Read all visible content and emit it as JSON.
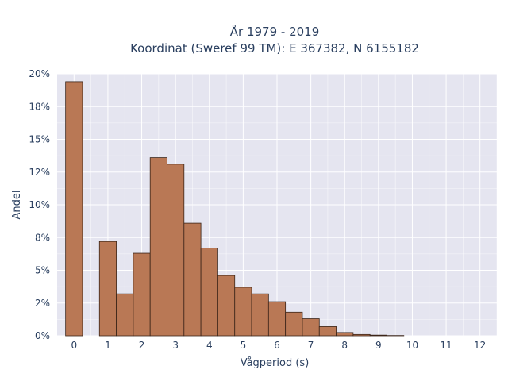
{
  "chart_data": {
    "type": "bar",
    "title_lines": [
      "År 1979 - 2019",
      "Koordinat (Sweref 99 TM): E 367382, N 6155182"
    ],
    "xlabel": "Vågperiod (s)",
    "ylabel": "Andel",
    "x_ticks": [
      0,
      1,
      2,
      3,
      4,
      5,
      6,
      7,
      8,
      9,
      10,
      11,
      12
    ],
    "y_ticks": [
      "0%",
      "2%",
      "5%",
      "8%",
      "10%",
      "12%",
      "15%",
      "18%",
      "20%"
    ],
    "y_tick_values": [
      0,
      0.025,
      0.05,
      0.075,
      0.1,
      0.125,
      0.15,
      0.175,
      0.2
    ],
    "xlim": [
      -0.5,
      12.5
    ],
    "ylim": [
      0,
      0.2
    ],
    "bar_width": 0.5,
    "bars": [
      {
        "x": 0.0,
        "value": 0.194
      },
      {
        "x": 1.0,
        "value": 0.072
      },
      {
        "x": 1.5,
        "value": 0.032
      },
      {
        "x": 2.0,
        "value": 0.063
      },
      {
        "x": 2.5,
        "value": 0.136
      },
      {
        "x": 3.0,
        "value": 0.131
      },
      {
        "x": 3.5,
        "value": 0.086
      },
      {
        "x": 4.0,
        "value": 0.067
      },
      {
        "x": 4.5,
        "value": 0.046
      },
      {
        "x": 5.0,
        "value": 0.037
      },
      {
        "x": 5.5,
        "value": 0.032
      },
      {
        "x": 6.0,
        "value": 0.026
      },
      {
        "x": 6.5,
        "value": 0.018
      },
      {
        "x": 7.0,
        "value": 0.013
      },
      {
        "x": 7.5,
        "value": 0.007
      },
      {
        "x": 8.0,
        "value": 0.0025
      },
      {
        "x": 8.5,
        "value": 0.001
      },
      {
        "x": 9.0,
        "value": 0.0005
      },
      {
        "x": 9.5,
        "value": 0.0002
      }
    ],
    "bar_color": "#b97855",
    "bar_edge_color": "#3a2418",
    "plot_bg": "#e5e5f0",
    "grid": true,
    "grid_color": "#ffffff"
  }
}
